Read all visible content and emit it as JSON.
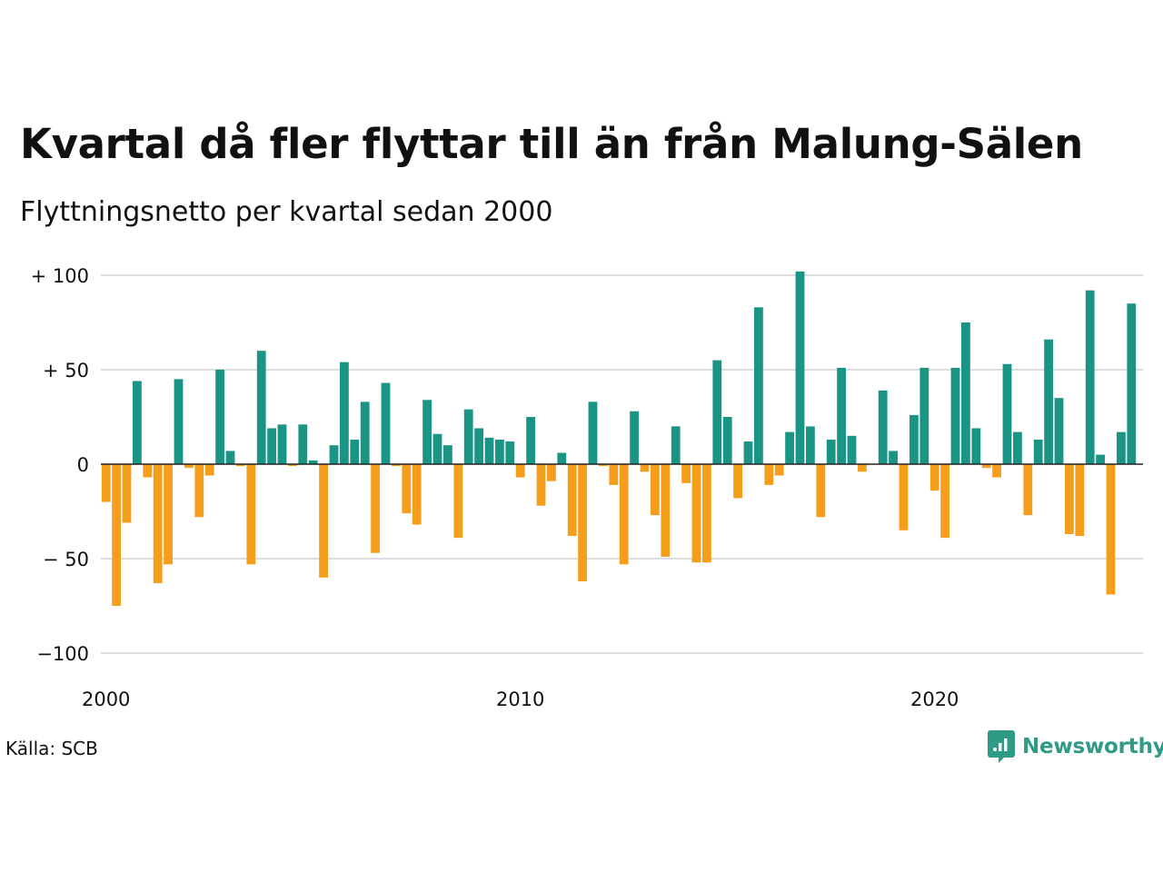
{
  "title": "Kvartal då fler flyttar till än från Malung-Sälen",
  "subtitle": "Flyttningsnetto per kvartal sedan 2000",
  "source": "Källa: SCB",
  "brand": {
    "name": "Newsworthy",
    "icon": "newsworthy-logo-icon"
  },
  "colors": {
    "positive": "#1a9484",
    "negative": "#f59e1c",
    "grid": "#dddddd",
    "zero_line": "#222222"
  },
  "chart_data": {
    "type": "bar",
    "x_start": 2000,
    "periods_per_year": 4,
    "x_ticks": [
      {
        "value": 2000,
        "label": "2000"
      },
      {
        "value": 2010,
        "label": "2010"
      },
      {
        "value": 2020,
        "label": "2020"
      }
    ],
    "y_ticks": [
      {
        "value": 100,
        "label": "+ 100"
      },
      {
        "value": 50,
        "label": "+  50"
      },
      {
        "value": 0,
        "label": "0"
      },
      {
        "value": -50,
        "label": "− 50"
      },
      {
        "value": -100,
        "label": "−100"
      }
    ],
    "ylim": [
      -100,
      100
    ],
    "grid": true,
    "values": [
      -20,
      -75,
      -31,
      44,
      -7,
      -63,
      -53,
      45,
      -2,
      -28,
      -6,
      50,
      7,
      -1,
      -53,
      60,
      19,
      21,
      -1,
      21,
      2,
      -60,
      10,
      54,
      13,
      33,
      -47,
      43,
      -1,
      -26,
      -32,
      34,
      16,
      10,
      -39,
      29,
      19,
      14,
      13,
      12,
      -7,
      25,
      -22,
      -9,
      6,
      -38,
      -62,
      33,
      -1,
      -11,
      -53,
      28,
      -4,
      -27,
      -49,
      20,
      -10,
      -52,
      -52,
      55,
      25,
      -18,
      12,
      83,
      -11,
      -6,
      17,
      102,
      20,
      -28,
      13,
      51,
      15,
      -4,
      0,
      39,
      7,
      -35,
      26,
      51,
      -14,
      -39,
      51,
      75,
      19,
      -2,
      -7,
      53,
      17,
      -27,
      13,
      66,
      35,
      -37,
      -38,
      92,
      5,
      -69,
      17,
      85
    ]
  }
}
